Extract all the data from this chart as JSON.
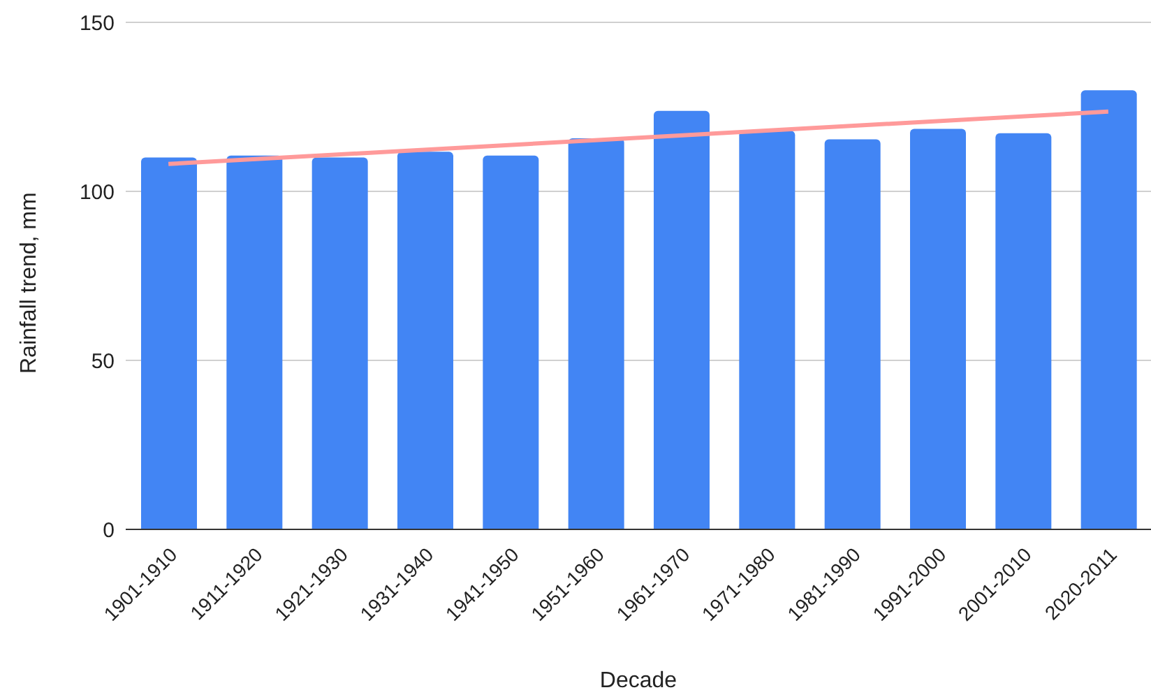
{
  "chart_data": {
    "type": "bar",
    "xlabel": "Decade",
    "ylabel": "Rainfall trend, mm",
    "categories": [
      "1901-1910",
      "1911-1920",
      "1921-1930",
      "1931-1940",
      "1941-1950",
      "1951-1960",
      "1961-1970",
      "1971-1980",
      "1981-1990",
      "1991-2000",
      "2001-2010",
      "2020-2011"
    ],
    "series": [
      {
        "color": "#4285f4",
        "values": [
          110,
          110.6,
          110,
          111.7,
          110.6,
          115.7,
          123.8,
          117.9,
          115.4,
          118.5,
          117.2,
          129.9
        ]
      },
      {
        "type": "line",
        "color": "#ff9a9a",
        "x": [
          "1901-1910",
          "2020-2011"
        ],
        "values": [
          108.1,
          123.6
        ]
      }
    ],
    "ylim": [
      0,
      150
    ],
    "yticks": [
      0,
      50,
      100,
      150
    ],
    "grid": "y",
    "legend": false
  }
}
